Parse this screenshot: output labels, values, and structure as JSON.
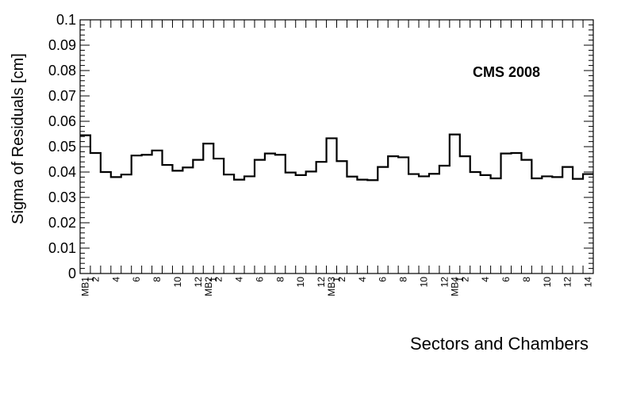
{
  "chart_data": {
    "type": "histogram-step",
    "title": "",
    "annotation": "CMS 2008",
    "xlabel": "Sectors and Chambers",
    "ylabel": "Sigma of Residuals [cm]",
    "ylim": [
      0,
      0.1
    ],
    "ytick_values": [
      0,
      0.01,
      0.02,
      0.03,
      0.04,
      0.05,
      0.06,
      0.07,
      0.08,
      0.09,
      0.1
    ],
    "ytick_labels": [
      "0",
      "0.01",
      "0.02",
      "0.03",
      "0.04",
      "0.05",
      "0.06",
      "0.07",
      "0.08",
      "0.09",
      "0.1"
    ],
    "xlim": [
      0,
      50
    ],
    "x_tick_labels": [
      {
        "pos": 0.5,
        "text": "MB1"
      },
      {
        "pos": 1.0,
        "text": "1"
      },
      {
        "pos": 1.5,
        "text": "2"
      },
      {
        "pos": 3.5,
        "text": "4"
      },
      {
        "pos": 5.5,
        "text": "6"
      },
      {
        "pos": 7.5,
        "text": "8"
      },
      {
        "pos": 9.5,
        "text": "10"
      },
      {
        "pos": 11.5,
        "text": "12"
      },
      {
        "pos": 12.5,
        "text": "MB2"
      },
      {
        "pos": 13.0,
        "text": "1"
      },
      {
        "pos": 13.5,
        "text": "2"
      },
      {
        "pos": 15.5,
        "text": "4"
      },
      {
        "pos": 17.5,
        "text": "6"
      },
      {
        "pos": 19.5,
        "text": "8"
      },
      {
        "pos": 21.5,
        "text": "10"
      },
      {
        "pos": 23.5,
        "text": "12"
      },
      {
        "pos": 24.5,
        "text": "MB3"
      },
      {
        "pos": 25.0,
        "text": "1"
      },
      {
        "pos": 25.5,
        "text": "2"
      },
      {
        "pos": 27.5,
        "text": "4"
      },
      {
        "pos": 29.5,
        "text": "6"
      },
      {
        "pos": 31.5,
        "text": "8"
      },
      {
        "pos": 33.5,
        "text": "10"
      },
      {
        "pos": 35.5,
        "text": "12"
      },
      {
        "pos": 36.5,
        "text": "MB4"
      },
      {
        "pos": 37.0,
        "text": "1"
      },
      {
        "pos": 37.5,
        "text": "2"
      },
      {
        "pos": 39.5,
        "text": "4"
      },
      {
        "pos": 41.5,
        "text": "6"
      },
      {
        "pos": 43.5,
        "text": "8"
      },
      {
        "pos": 45.5,
        "text": "10"
      },
      {
        "pos": 47.5,
        "text": "12"
      },
      {
        "pos": 49.5,
        "text": "14"
      }
    ],
    "values": [
      0.0545,
      0.0475,
      0.04,
      0.038,
      0.039,
      0.0465,
      0.0468,
      0.0485,
      0.0428,
      0.0405,
      0.0418,
      0.0448,
      0.0512,
      0.0453,
      0.039,
      0.037,
      0.0383,
      0.0448,
      0.0473,
      0.0468,
      0.0398,
      0.0388,
      0.0402,
      0.044,
      0.0533,
      0.0443,
      0.0382,
      0.037,
      0.0368,
      0.042,
      0.0462,
      0.0458,
      0.0392,
      0.0383,
      0.0393,
      0.0425,
      0.0548,
      0.0462,
      0.04,
      0.0388,
      0.0375,
      0.0473,
      0.0475,
      0.0448,
      0.0375,
      0.0383,
      0.038,
      0.042,
      0.0373,
      0.0392
    ],
    "grid": false,
    "line_color": "#000000"
  }
}
